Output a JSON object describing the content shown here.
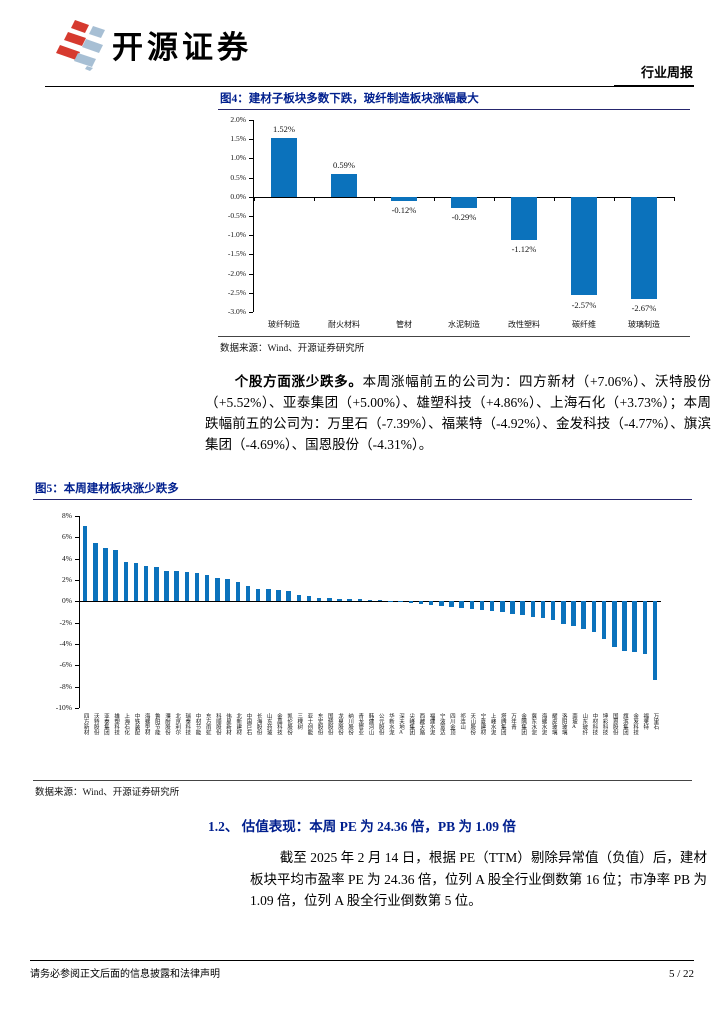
{
  "colors": {
    "bar_blue": "#0b72bc",
    "caption_navy": "#001f8e",
    "brand_red": "#d63a2f",
    "brand_blue_gray": "#a7bfd4"
  },
  "header": {
    "brand": "开源证券",
    "report_type": "行业周报"
  },
  "figure4": {
    "caption": "图4：建材子板块多数下跌，玻纤制造板块涨幅最大",
    "source": "数据来源：Wind、开源证券研究所",
    "chart": {
      "type": "bar",
      "color": "#0b72bc",
      "categories": [
        "玻纤制造",
        "耐火材料",
        "管材",
        "水泥制造",
        "改性塑料",
        "碳纤维",
        "玻璃制造"
      ],
      "values": [
        1.52,
        0.59,
        -0.12,
        -0.29,
        -1.12,
        -2.57,
        -2.67
      ],
      "value_labels": [
        "1.52%",
        "0.59%",
        "-0.12%",
        "-0.29%",
        "-1.12%",
        "-2.57%",
        "-2.67%"
      ],
      "ylim": [
        -3.0,
        2.0
      ],
      "yticks": [
        {
          "value": 2.0,
          "label": "2.0%"
        },
        {
          "value": 1.5,
          "label": "1.5%"
        },
        {
          "value": 1.0,
          "label": "1.0%"
        },
        {
          "value": 0.5,
          "label": "0.5%"
        },
        {
          "value": 0.0,
          "label": "0.0%"
        },
        {
          "value": -0.5,
          "label": "-0.5%"
        },
        {
          "value": -1.0,
          "label": "-1.0%"
        },
        {
          "value": -1.5,
          "label": "-1.5%"
        },
        {
          "value": -2.0,
          "label": "-2.0%"
        },
        {
          "value": -2.5,
          "label": "-2.5%"
        },
        {
          "value": -3.0,
          "label": "-3.0%"
        }
      ]
    }
  },
  "paragraph1": {
    "lead": "个股方面涨少跌多。",
    "body": "本周涨幅前五的公司为：四方新材（+7.06%）、沃特股份（+5.52%）、亚泰集团（+5.00%）、雄塑科技（+4.86%）、上海石化（+3.73%）；本周跌幅前五的公司为：万里石（-7.39%）、福莱特（-4.92%）、金发科技（-4.77%）、旗滨集团（-4.69%）、国恩股份（-4.31%）。"
  },
  "figure5": {
    "caption": "图5：本周建材板块涨少跌多",
    "source": "数据来源：Wind、开源证券研究所",
    "chart": {
      "type": "bar",
      "color": "#0b72bc",
      "names": [
        "四方新材",
        "沃特股份",
        "亚泰集团",
        "雄塑科技",
        "上海石化",
        "中铁装配",
        "海螺型材",
        "鲁阳节能",
        "濮耐股份",
        "北京利尔",
        "瑞泰科技",
        "中材节能",
        "东方雨虹",
        "科顺股份",
        "伟星新材",
        "北新建材",
        "中国巨石",
        "长海股份",
        "山东药玻",
        "金晶科技",
        "凯伦股份",
        "三棵树",
        "亚士创能",
        "东宏股份",
        "国统股份",
        "龙泉股份",
        "纳川股份",
        "青龙管业",
        "韩建河山",
        "公元股份",
        "华新水泥",
        "深天地A",
        "尖峰集团",
        "西藏天路",
        "福建水泥",
        "宁波富达",
        "四川金顶",
        "祁连山",
        "天山股份",
        "宁夏建材",
        "上峰水泥",
        "塔牌集团",
        "万年青",
        "金隅集团",
        "冀东水泥",
        "海螺水泥",
        "耀皮玻璃",
        "洛阳玻璃",
        "南玻A",
        "山东玻纤",
        "中材科技",
        "坤彩科技",
        "国恩股份",
        "旗滨集团",
        "金发科技",
        "福莱特",
        "万里石"
      ],
      "values": [
        7.06,
        5.52,
        5.0,
        4.86,
        3.73,
        3.62,
        3.35,
        3.22,
        2.88,
        2.82,
        2.72,
        2.65,
        2.52,
        2.22,
        2.1,
        1.86,
        1.46,
        1.16,
        1.12,
        1.06,
        1.0,
        0.56,
        0.5,
        0.36,
        0.3,
        0.26,
        0.22,
        0.2,
        0.16,
        0.1,
        0.05,
        -0.08,
        -0.15,
        -0.25,
        -0.35,
        -0.45,
        -0.55,
        -0.65,
        -0.75,
        -0.85,
        -0.95,
        -1.05,
        -1.15,
        -1.3,
        -1.45,
        -1.6,
        -1.8,
        -2.1,
        -2.35,
        -2.6,
        -2.85,
        -3.5,
        -4.31,
        -4.69,
        -4.77,
        -4.92,
        -7.39
      ],
      "ylim": [
        -10,
        8
      ],
      "yticks": [
        {
          "value": 8,
          "label": "8%"
        },
        {
          "value": 6,
          "label": "6%"
        },
        {
          "value": 4,
          "label": "4%"
        },
        {
          "value": 2,
          "label": "2%"
        },
        {
          "value": 0,
          "label": "0%"
        },
        {
          "value": -2,
          "label": "-2%"
        },
        {
          "value": -4,
          "label": "-4%"
        },
        {
          "value": -6,
          "label": "-6%"
        },
        {
          "value": -8,
          "label": "-8%"
        },
        {
          "value": -10,
          "label": "-10%"
        }
      ]
    }
  },
  "section": {
    "heading": "1.2、 估值表现：本周 PE 为 24.36 倍，PB 为 1.09 倍"
  },
  "paragraph2": {
    "text": "截至 2025 年 2 月 14 日，根据 PE（TTM）剔除异常值（负值）后，建材板块平均市盈率 PE 为 24.36 倍，位列 A 股全行业倒数第 16 位；市净率 PB 为 1.09 倍，位列 A 股全行业倒数第 5 位。"
  },
  "footer": {
    "disclaimer": "请务必参阅正文后面的信息披露和法律声明",
    "page": "5 / 22"
  }
}
